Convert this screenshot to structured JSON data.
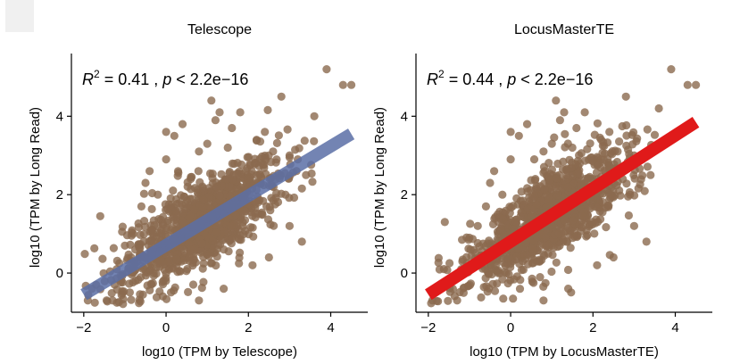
{
  "chart_data": [
    {
      "type": "scatter",
      "title": "Telescope",
      "xlabel": "log10 (TPM by Telescope)",
      "ylabel": "log10 (TPM by Long Read)",
      "xlim": [
        -2.3,
        4.9
      ],
      "ylim": [
        -1.0,
        5.6
      ],
      "xticks": [
        -2,
        0,
        2,
        4
      ],
      "yticks": [
        0,
        2,
        4
      ],
      "xtick_labels": [
        "−2",
        "0",
        "2",
        "4"
      ],
      "ytick_labels": [
        "0",
        "2",
        "4"
      ],
      "annotation": {
        "r2": "0.41",
        "p": "2.2e−16"
      },
      "regression": {
        "x": [
          -2.0,
          4.5
        ],
        "y": [
          -0.55,
          3.55
        ],
        "color": "#5b6fa6",
        "alpha": 0.85
      },
      "point_color": "#8b6a4f",
      "outlier_points": [
        [
          -1.8,
          -0.4
        ],
        [
          -1.6,
          1.45
        ],
        [
          -1.7,
          -0.3
        ],
        [
          -1.2,
          0.1
        ],
        [
          -1.0,
          0.7
        ],
        [
          -0.8,
          1.0
        ],
        [
          -0.6,
          1.7
        ],
        [
          -0.5,
          2.3
        ],
        [
          -0.4,
          2.6
        ],
        [
          -0.2,
          2.0
        ],
        [
          0.0,
          2.9
        ],
        [
          0.2,
          3.5
        ],
        [
          0.4,
          3.8
        ],
        [
          0.6,
          2.4
        ],
        [
          0.8,
          3.1
        ],
        [
          1.0,
          3.3
        ],
        [
          1.2,
          3.9
        ],
        [
          1.3,
          4.1
        ],
        [
          1.5,
          3.2
        ],
        [
          1.6,
          3.7
        ],
        [
          1.8,
          4.1
        ],
        [
          2.0,
          2.4
        ],
        [
          2.2,
          3.4
        ],
        [
          2.4,
          3.6
        ],
        [
          2.6,
          3.1
        ],
        [
          2.8,
          4.5
        ],
        [
          3.0,
          3.0
        ],
        [
          3.2,
          2.9
        ],
        [
          3.4,
          2.5
        ],
        [
          3.6,
          4.0
        ],
        [
          3.9,
          5.2
        ],
        [
          4.3,
          4.8
        ],
        [
          4.5,
          4.8
        ],
        [
          2.1,
          0.2
        ],
        [
          2.5,
          0.4
        ],
        [
          3.0,
          1.2
        ],
        [
          1.4,
          -0.4
        ],
        [
          0.8,
          -0.7
        ],
        [
          -1.3,
          -0.7
        ],
        [
          -1.9,
          -0.7
        ],
        [
          -0.3,
          0.0
        ],
        [
          3.3,
          0.8
        ],
        [
          2.9,
          2.0
        ],
        [
          1.1,
          4.4
        ],
        [
          0.0,
          3.6
        ]
      ]
    },
    {
      "type": "scatter",
      "title": "LocusMasterTE",
      "xlabel": "log10 (TPM by LocusMasterTE)",
      "ylabel": "log10 (TPM by Long Read)",
      "xlim": [
        -2.3,
        4.9
      ],
      "ylim": [
        -1.0,
        5.6
      ],
      "xticks": [
        -2,
        0,
        2,
        4
      ],
      "yticks": [
        0,
        2,
        4
      ],
      "xtick_labels": [
        "−2",
        "0",
        "2",
        "4"
      ],
      "ytick_labels": [
        "0",
        "2",
        "4"
      ],
      "annotation": {
        "r2": "0.44",
        "p": "2.2e−16"
      },
      "regression": {
        "x": [
          -2.0,
          4.5
        ],
        "y": [
          -0.55,
          3.85
        ],
        "color": "#e01a1a",
        "alpha": 1.0
      },
      "point_color": "#8b6a4f",
      "outlier_points": [
        [
          -1.8,
          -0.4
        ],
        [
          -1.6,
          1.3
        ],
        [
          -1.7,
          -0.3
        ],
        [
          -1.2,
          0.1
        ],
        [
          -1.0,
          0.9
        ],
        [
          -0.8,
          1.2
        ],
        [
          -0.6,
          1.7
        ],
        [
          -0.5,
          2.3
        ],
        [
          -0.4,
          2.6
        ],
        [
          -0.2,
          2.0
        ],
        [
          0.0,
          2.9
        ],
        [
          0.2,
          3.5
        ],
        [
          0.4,
          3.8
        ],
        [
          0.6,
          2.4
        ],
        [
          0.8,
          3.1
        ],
        [
          1.0,
          3.3
        ],
        [
          1.2,
          3.9
        ],
        [
          1.3,
          4.1
        ],
        [
          1.5,
          3.2
        ],
        [
          1.6,
          3.7
        ],
        [
          1.8,
          4.1
        ],
        [
          2.0,
          2.4
        ],
        [
          2.2,
          3.4
        ],
        [
          2.4,
          3.6
        ],
        [
          2.6,
          3.1
        ],
        [
          2.8,
          4.5
        ],
        [
          3.0,
          3.0
        ],
        [
          3.2,
          2.9
        ],
        [
          3.4,
          2.5
        ],
        [
          3.6,
          4.2
        ],
        [
          3.9,
          5.2
        ],
        [
          4.3,
          4.8
        ],
        [
          4.5,
          4.8
        ],
        [
          2.1,
          0.2
        ],
        [
          2.5,
          0.4
        ],
        [
          3.0,
          1.2
        ],
        [
          1.4,
          -0.4
        ],
        [
          0.8,
          -0.7
        ],
        [
          -1.3,
          -0.7
        ],
        [
          -1.9,
          -0.7
        ],
        [
          -0.3,
          0.0
        ],
        [
          3.3,
          0.8
        ],
        [
          2.9,
          2.0
        ],
        [
          1.1,
          4.4
        ],
        [
          0.0,
          3.6
        ]
      ]
    }
  ]
}
